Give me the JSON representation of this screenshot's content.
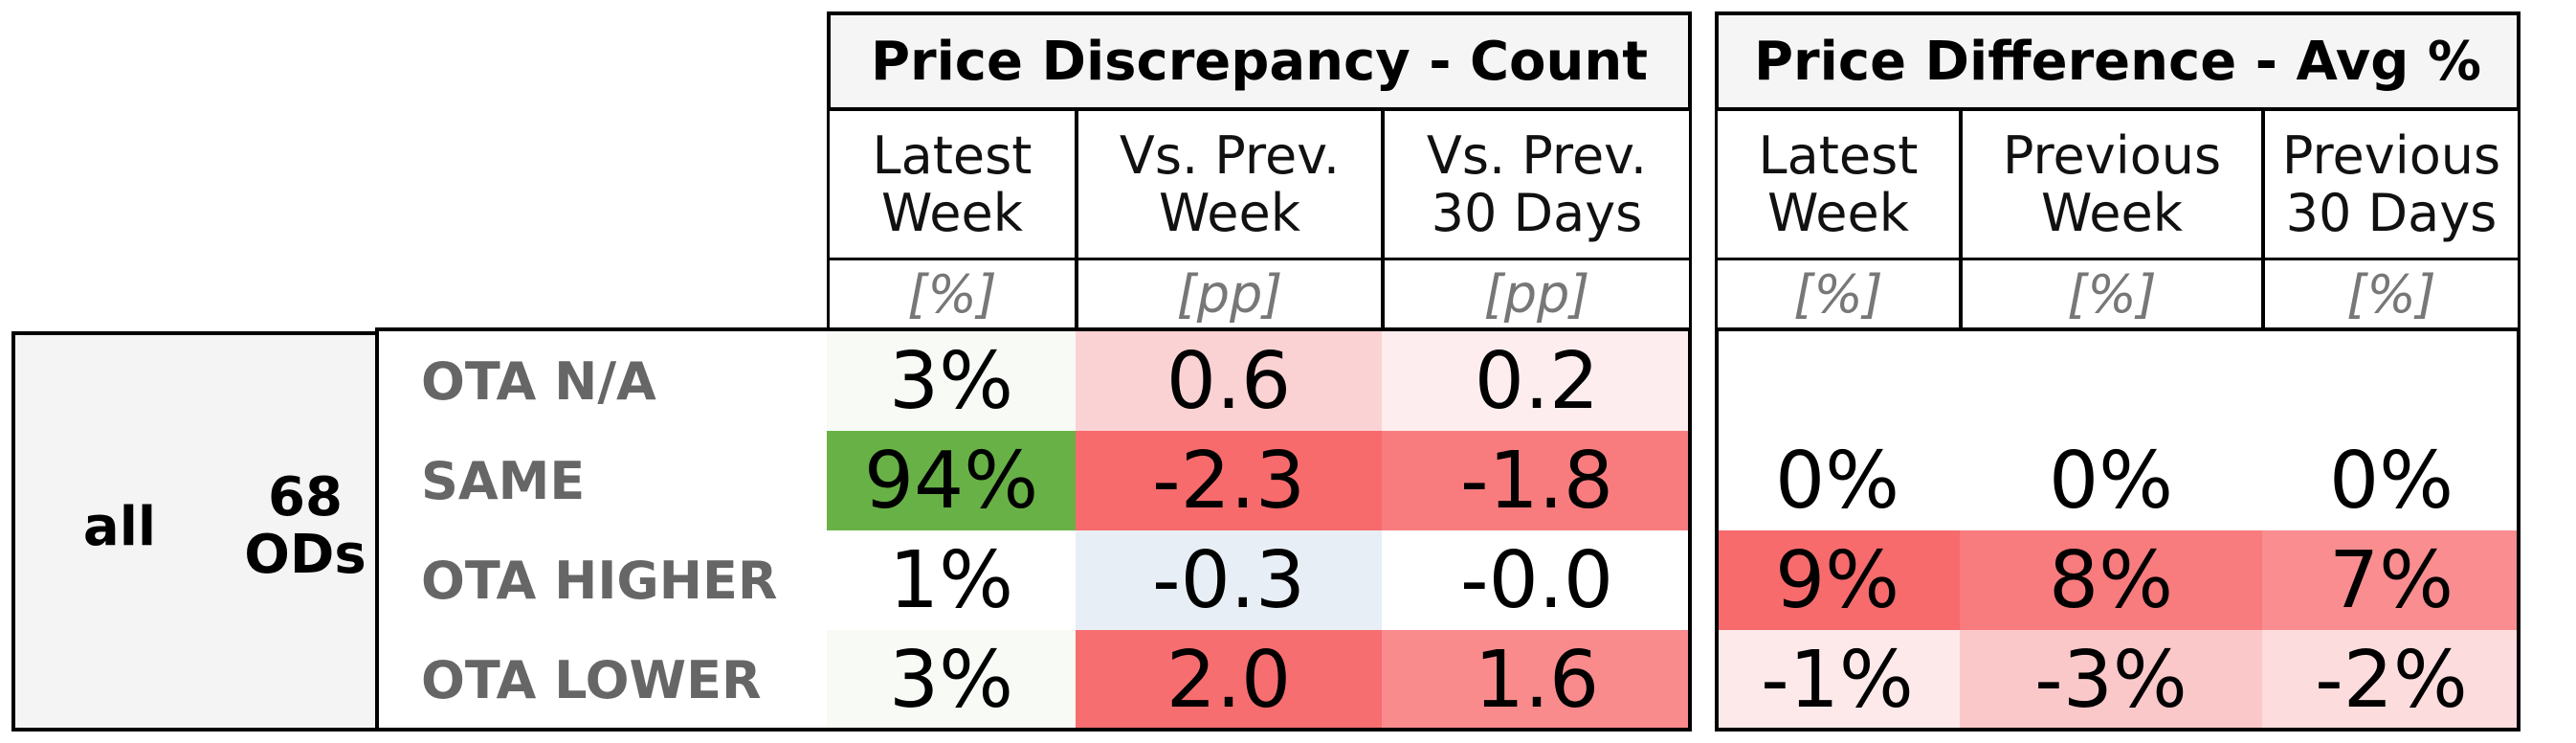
{
  "chart_data": {
    "type": "table",
    "groups": [
      {
        "title": "Price Discrepancy - Count",
        "columns": [
          {
            "label": "Latest\nWeek",
            "unit": "[%]"
          },
          {
            "label": "Vs. Prev.\nWeek",
            "unit": "[pp]"
          },
          {
            "label": "Vs. Prev.\n30 Days",
            "unit": "[pp]"
          }
        ]
      },
      {
        "title": "Price Difference - Avg %",
        "columns": [
          {
            "label": "Latest\nWeek",
            "unit": "[%]"
          },
          {
            "label": "Previous\nWeek",
            "unit": "[%]"
          },
          {
            "label": "Previous\n30 Days",
            "unit": "[%]"
          }
        ]
      }
    ],
    "segment": "all",
    "od_count": "68\nODs",
    "rows": [
      {
        "label": "OTA N/A",
        "count": [
          "3%",
          "0.6",
          "0.2"
        ],
        "count_colors": [
          "#f7faf5",
          "#fbd2d3",
          "#fdedee"
        ],
        "avg": [
          "",
          "",
          ""
        ],
        "avg_colors": [
          "#ffffff",
          "#ffffff",
          "#ffffff"
        ]
      },
      {
        "label": "SAME",
        "count": [
          "94%",
          "-2.3",
          "-1.8"
        ],
        "count_colors": [
          "#68b146",
          "#f76b6d",
          "#f87c7e"
        ],
        "avg": [
          "0%",
          "0%",
          "0%"
        ],
        "avg_colors": [
          "#ffffff",
          "#ffffff",
          "#ffffff"
        ]
      },
      {
        "label": "OTA HIGHER",
        "count": [
          "1%",
          "-0.3",
          "-0.0"
        ],
        "count_colors": [
          "#ffffff",
          "#e8eef5",
          "#ffffff"
        ],
        "avg": [
          "9%",
          "8%",
          "7%"
        ],
        "avg_colors": [
          "#f76b6d",
          "#f87b7d",
          "#f98d8f"
        ]
      },
      {
        "label": "OTA LOWER",
        "count": [
          "3%",
          "2.0",
          "1.6"
        ],
        "count_colors": [
          "#f7faf5",
          "#f76e70",
          "#f98b8d"
        ],
        "avg": [
          "-1%",
          "-3%",
          "-2%"
        ],
        "avg_colors": [
          "#fde9ea",
          "#fbc8ca",
          "#fcdcdd"
        ]
      }
    ]
  }
}
